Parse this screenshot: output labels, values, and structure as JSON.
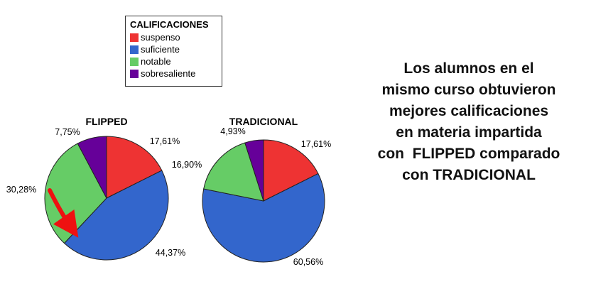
{
  "legend": {
    "title": "CALIFICACIONES",
    "items": [
      {
        "label": "suspenso",
        "color": "#ee3333"
      },
      {
        "label": "suficiente",
        "color": "#3366cc"
      },
      {
        "label": "notable",
        "color": "#66cc66"
      },
      {
        "label": "sobresaliente",
        "color": "#660099"
      }
    ]
  },
  "chart_data": [
    {
      "type": "pie",
      "title": "FLIPPED",
      "categories": [
        "suspenso",
        "suficiente",
        "notable",
        "sobresaliente"
      ],
      "values": [
        17.61,
        44.37,
        30.28,
        7.75
      ],
      "labels": [
        "17,61%",
        "44,37%",
        "30,28%",
        "7,75%"
      ],
      "colors": [
        "#ee3333",
        "#3366cc",
        "#66cc66",
        "#660099"
      ],
      "annotation": "red-arrow-on-notable"
    },
    {
      "type": "pie",
      "title": "TRADICIONAL",
      "categories": [
        "suspenso",
        "suficiente",
        "notable",
        "sobresaliente"
      ],
      "values": [
        17.61,
        60.56,
        16.9,
        4.93
      ],
      "labels": [
        "17,61%",
        "60,56%",
        "16,90%",
        "4,93%"
      ],
      "colors": [
        "#ee3333",
        "#3366cc",
        "#66cc66",
        "#660099"
      ]
    }
  ],
  "side_text": {
    "lines": [
      "Los alumnos en el",
      "mismo curso obtuvieron",
      "mejores calificaciones",
      "en materia impartida",
      "con  FLIPPED comparado",
      "con TRADICIONAL"
    ]
  }
}
